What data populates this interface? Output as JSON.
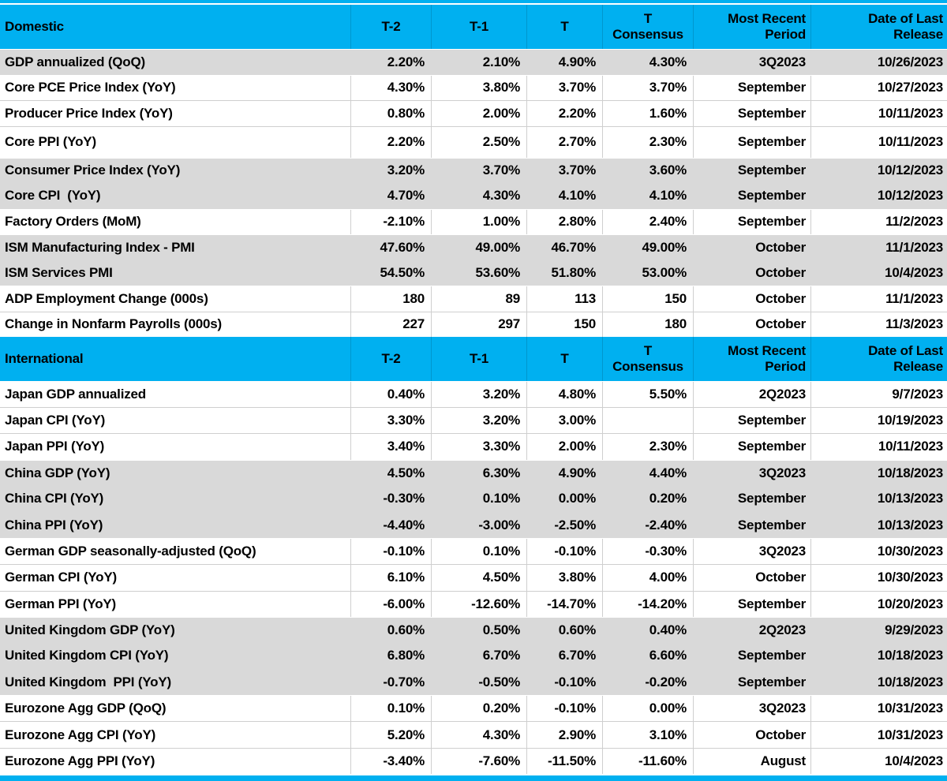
{
  "table": {
    "colors": {
      "header_bg": "#00B0F0",
      "row_gray": "#D9D9D9",
      "row_white": "#FFFFFF",
      "grid": "#CFCFCF",
      "text": "#000000"
    },
    "header": {
      "t2": "T-2",
      "t1": "T-1",
      "t": "T",
      "consensus_line1": "T",
      "consensus_line2": "Consensus",
      "period_line1": "Most Recent",
      "period_line2": "Period",
      "release_line1": "Date of Last",
      "release_line2": "Release"
    },
    "columns": [
      "T-2",
      "T-1",
      "T",
      "T Consensus",
      "Most Recent Period",
      "Date of Last Release"
    ],
    "sections": [
      {
        "title": "Domestic",
        "rows": [
          {
            "label": "GDP annualized (QoQ)",
            "t2": "2.20%",
            "t1": "2.10%",
            "t": "4.90%",
            "consensus": "4.30%",
            "period": "3Q2023",
            "release": "10/26/2023",
            "shade": "gray"
          },
          {
            "label": "Core PCE Price Index (YoY)",
            "t2": "4.30%",
            "t1": "3.80%",
            "t": "3.70%",
            "consensus": "3.70%",
            "period": "September",
            "release": "10/27/2023",
            "shade": "white"
          },
          {
            "label": "Producer Price Index (YoY)",
            "t2": "0.80%",
            "t1": "2.00%",
            "t": "2.20%",
            "consensus": "1.60%",
            "period": "September",
            "release": "10/11/2023",
            "shade": "white"
          },
          {
            "label": "Core PPI (YoY)",
            "t2": "2.20%",
            "t1": "2.50%",
            "t": "2.70%",
            "consensus": "2.30%",
            "period": "September",
            "release": "10/11/2023",
            "shade": "white",
            "tall": true
          },
          {
            "label": "Consumer Price Index (YoY)",
            "t2": "3.20%",
            "t1": "3.70%",
            "t": "3.70%",
            "consensus": "3.60%",
            "period": "September",
            "release": "10/12/2023",
            "shade": "gray"
          },
          {
            "label": "Core CPI  (YoY)",
            "t2": "4.70%",
            "t1": "4.30%",
            "t": "4.10%",
            "consensus": "4.10%",
            "period": "September",
            "release": "10/12/2023",
            "shade": "gray"
          },
          {
            "label": "Factory Orders (MoM)",
            "t2": "-2.10%",
            "t1": "1.00%",
            "t": "2.80%",
            "consensus": "2.40%",
            "period": "September",
            "release": "11/2/2023",
            "shade": "white"
          },
          {
            "label": "ISM Manufacturing Index - PMI",
            "t2": "47.60%",
            "t1": "49.00%",
            "t": "46.70%",
            "consensus": "49.00%",
            "period": "October",
            "release": "11/1/2023",
            "shade": "gray"
          },
          {
            "label": "ISM Services PMI",
            "t2": "54.50%",
            "t1": "53.60%",
            "t": "51.80%",
            "consensus": "53.00%",
            "period": "October",
            "release": "10/4/2023",
            "shade": "gray"
          },
          {
            "label": "ADP Employment Change (000s)",
            "t2": "180",
            "t1": "89",
            "t": "113",
            "consensus": "150",
            "period": "October",
            "release": "11/1/2023",
            "shade": "white"
          },
          {
            "label": "Change in Nonfarm Payrolls (000s)",
            "t2": "227",
            "t1": "297",
            "t": "150",
            "consensus": "180",
            "period": "October",
            "release": "11/3/2023",
            "shade": "white"
          }
        ]
      },
      {
        "title": "International",
        "rows": [
          {
            "label": "Japan GDP annualized",
            "t2": "0.40%",
            "t1": "3.20%",
            "t": "4.80%",
            "consensus": "5.50%",
            "period": "2Q2023",
            "release": "9/7/2023",
            "shade": "white"
          },
          {
            "label": "Japan CPI (YoY)",
            "t2": "3.30%",
            "t1": "3.20%",
            "t": "3.00%",
            "consensus": "",
            "period": "September",
            "release": "10/19/2023",
            "shade": "white"
          },
          {
            "label": "Japan PPI (YoY)",
            "t2": "3.40%",
            "t1": "3.30%",
            "t": "2.00%",
            "consensus": "2.30%",
            "period": "September",
            "release": "10/11/2023",
            "shade": "white"
          },
          {
            "label": "China GDP (YoY)",
            "t2": "4.50%",
            "t1": "6.30%",
            "t": "4.90%",
            "consensus": "4.40%",
            "period": "3Q2023",
            "release": "10/18/2023",
            "shade": "gray"
          },
          {
            "label": "China CPI (YoY)",
            "t2": "-0.30%",
            "t1": "0.10%",
            "t": "0.00%",
            "consensus": "0.20%",
            "period": "September",
            "release": "10/13/2023",
            "shade": "gray"
          },
          {
            "label": "China PPI (YoY)",
            "t2": "-4.40%",
            "t1": "-3.00%",
            "t": "-2.50%",
            "consensus": "-2.40%",
            "period": "September",
            "release": "10/13/2023",
            "shade": "gray"
          },
          {
            "label": "German GDP seasonally-adjusted (QoQ)",
            "t2": "-0.10%",
            "t1": "0.10%",
            "t": "-0.10%",
            "consensus": "-0.30%",
            "period": "3Q2023",
            "release": "10/30/2023",
            "shade": "white"
          },
          {
            "label": "German CPI (YoY)",
            "t2": "6.10%",
            "t1": "4.50%",
            "t": "3.80%",
            "consensus": "4.00%",
            "period": "October",
            "release": "10/30/2023",
            "shade": "white"
          },
          {
            "label": "German PPI (YoY)",
            "t2": "-6.00%",
            "t1": "-12.60%",
            "t": "-14.70%",
            "consensus": "-14.20%",
            "period": "September",
            "release": "10/20/2023",
            "shade": "white"
          },
          {
            "label": "United Kingdom GDP (YoY)",
            "t2": "0.60%",
            "t1": "0.50%",
            "t": "0.60%",
            "consensus": "0.40%",
            "period": "2Q2023",
            "release": "9/29/2023",
            "shade": "gray"
          },
          {
            "label": "United Kingdom CPI (YoY)",
            "t2": "6.80%",
            "t1": "6.70%",
            "t": "6.70%",
            "consensus": "6.60%",
            "period": "September",
            "release": "10/18/2023",
            "shade": "gray"
          },
          {
            "label": "United Kingdom  PPI (YoY)",
            "t2": "-0.70%",
            "t1": "-0.50%",
            "t": "-0.10%",
            "consensus": "-0.20%",
            "period": "September",
            "release": "10/18/2023",
            "shade": "gray"
          },
          {
            "label": "Eurozone Agg GDP (QoQ)",
            "t2": "0.10%",
            "t1": "0.20%",
            "t": "-0.10%",
            "consensus": "0.00%",
            "period": "3Q2023",
            "release": "10/31/2023",
            "shade": "white"
          },
          {
            "label": "Eurozone Agg CPI (YoY)",
            "t2": "5.20%",
            "t1": "4.30%",
            "t": "2.90%",
            "consensus": "3.10%",
            "period": "October",
            "release": "10/31/2023",
            "shade": "white"
          },
          {
            "label": "Eurozone Agg PPI (YoY)",
            "t2": "-3.40%",
            "t1": "-7.60%",
            "t": "-11.50%",
            "consensus": "-11.60%",
            "period": "August",
            "release": "10/4/2023",
            "shade": "white"
          }
        ]
      }
    ]
  }
}
